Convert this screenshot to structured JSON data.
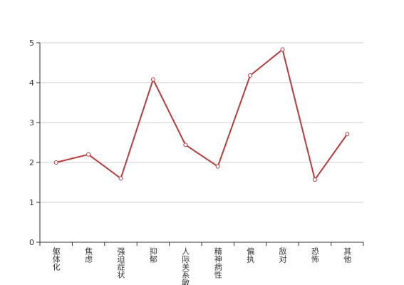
{
  "chart_data": {
    "type": "line",
    "categories": [
      "躯体化",
      "焦虑",
      "强迫症状",
      "抑郁",
      "人际关系敏感",
      "精神病性",
      "偏执",
      "敌对",
      "恐怖",
      "其他"
    ],
    "series": [
      {
        "color": "#b83b3b",
        "values": [
          2.0,
          2.2,
          1.6,
          4.08,
          2.44,
          1.9,
          4.18,
          4.83,
          1.57,
          2.71
        ]
      }
    ],
    "ylim": [
      0,
      5
    ],
    "yticks": [
      0,
      1,
      2,
      3,
      4,
      5
    ],
    "grid": true
  }
}
